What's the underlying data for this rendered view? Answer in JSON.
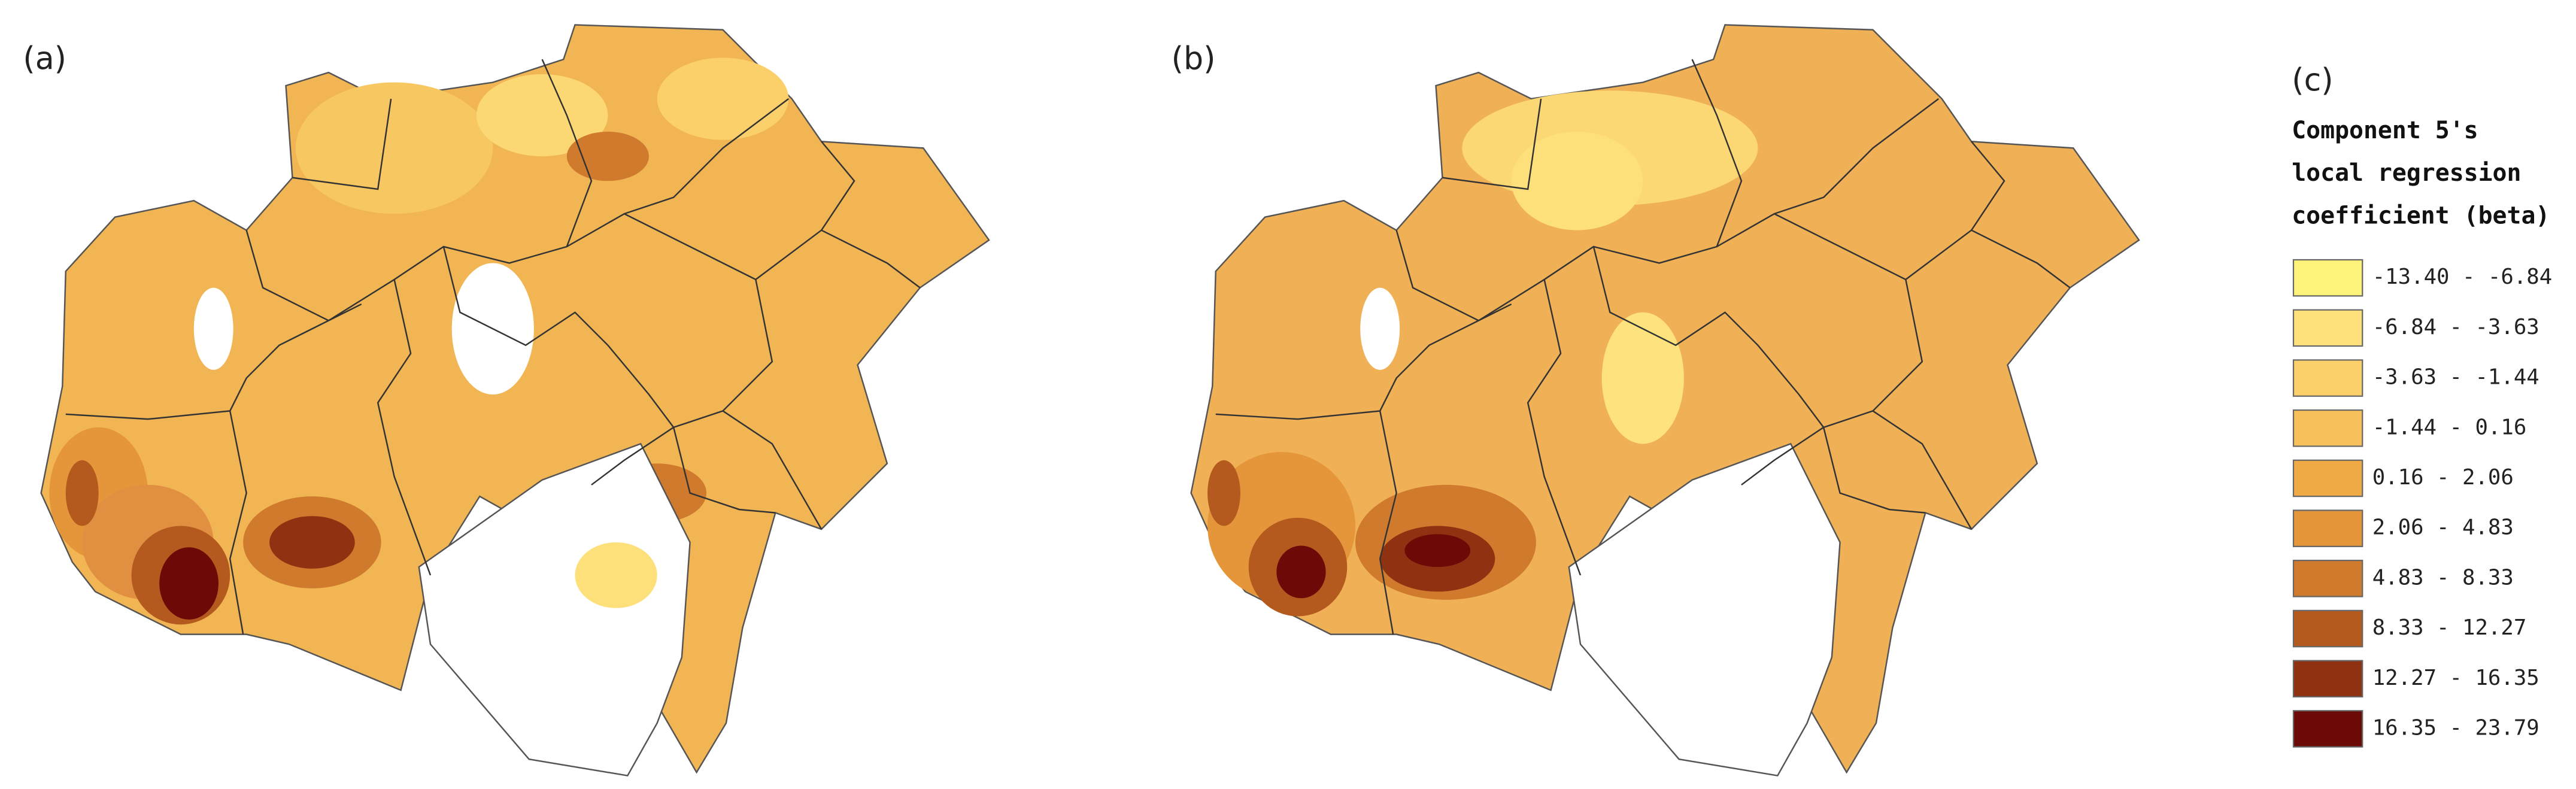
{
  "panels": [
    {
      "label": "(a)"
    },
    {
      "label": "(b)"
    }
  ],
  "legend": {
    "label": "(c)",
    "title": [
      "Component 5's",
      "local regression",
      "coefficient (beta)"
    ],
    "items": [
      {
        "label": "-13.40 - -6.84",
        "color": "#fdf37a"
      },
      {
        "label": "-6.84 - -3.63",
        "color": "#fde07a"
      },
      {
        "label": "-3.63 - -1.44",
        "color": "#fbd06a"
      },
      {
        "label": "-1.44 - 0.16",
        "color": "#f7c05a"
      },
      {
        "label": "0.16 - 2.06",
        "color": "#f0aa45"
      },
      {
        "label": "2.06 - 4.83",
        "color": "#e5963a"
      },
      {
        "label": "4.83 - 8.33",
        "color": "#cf7a2c"
      },
      {
        "label": "8.33 - 12.27",
        "color": "#b45a1e"
      },
      {
        "label": "12.27 - 16.35",
        "color": "#8f3212"
      },
      {
        "label": "16.35 - 23.79",
        "color": "#6b0a06"
      }
    ]
  }
}
